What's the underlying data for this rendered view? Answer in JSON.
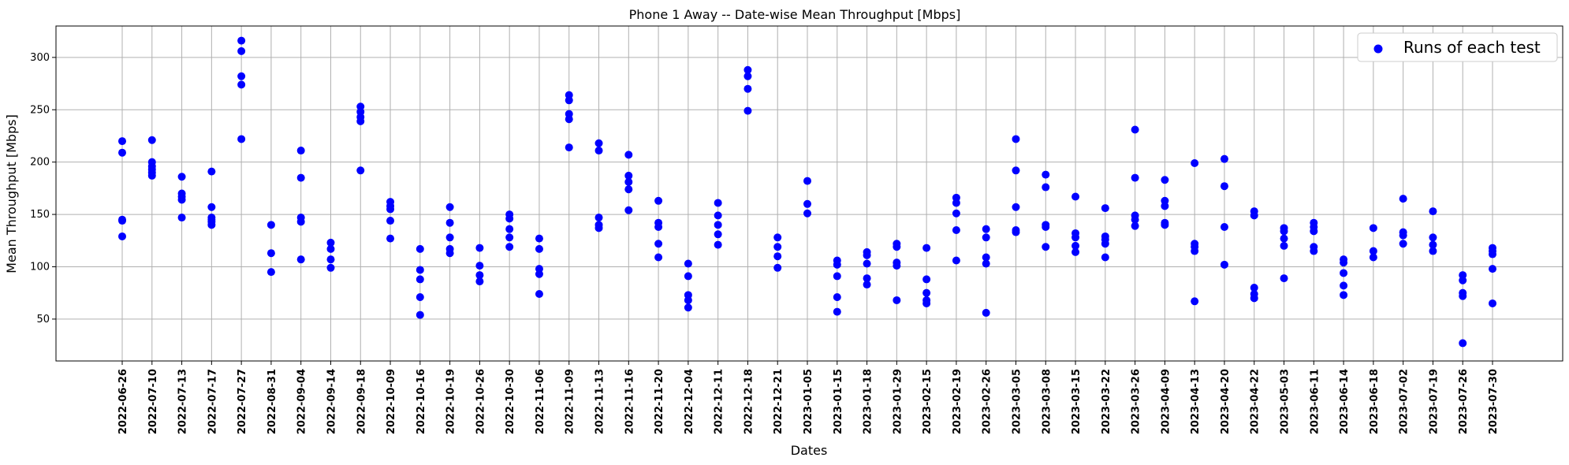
{
  "chart_data": {
    "type": "scatter",
    "title": "Phone 1 Away -- Date-wise Mean Throughput [Mbps]",
    "xlabel": "Dates",
    "ylabel": "Mean Throughput [Mbps]",
    "ylim": [
      10,
      330
    ],
    "yticks": [
      50,
      100,
      150,
      200,
      250,
      300
    ],
    "grid": true,
    "legend_position": "top-right",
    "marker_color": "#0000ff",
    "series": [
      {
        "name": "Runs of each test",
        "points": [
          {
            "x": "2022-06-26",
            "y": [
              220,
              209,
              145,
              144,
              129
            ]
          },
          {
            "x": "2022-07-10",
            "y": [
              221,
              200,
              196,
              193,
              190,
              187
            ]
          },
          {
            "x": "2022-07-13",
            "y": [
              186,
              170,
              167,
              164,
              147
            ]
          },
          {
            "x": "2022-07-17",
            "y": [
              191,
              157,
              147,
              145,
              143,
              140
            ]
          },
          {
            "x": "2022-07-27",
            "y": [
              316,
              306,
              282,
              274,
              222
            ]
          },
          {
            "x": "2022-08-31",
            "y": [
              140,
              113,
              95
            ]
          },
          {
            "x": "2022-09-04",
            "y": [
              211,
              185,
              147,
              143,
              107
            ]
          },
          {
            "x": "2022-09-14",
            "y": [
              123,
              117,
              107,
              99
            ]
          },
          {
            "x": "2022-09-18",
            "y": [
              253,
              248,
              243,
              239,
              192
            ]
          },
          {
            "x": "2022-10-09",
            "y": [
              162,
              158,
              155,
              144,
              127
            ]
          },
          {
            "x": "2022-10-16",
            "y": [
              117,
              97,
              88,
              71,
              54
            ]
          },
          {
            "x": "2022-10-19",
            "y": [
              157,
              142,
              128,
              117,
              113
            ]
          },
          {
            "x": "2022-10-26",
            "y": [
              118,
              101,
              92,
              86
            ]
          },
          {
            "x": "2022-10-30",
            "y": [
              150,
              146,
              136,
              128,
              119
            ]
          },
          {
            "x": "2022-11-06",
            "y": [
              127,
              117,
              98,
              93,
              74
            ]
          },
          {
            "x": "2022-11-09",
            "y": [
              264,
              259,
              246,
              241,
              214
            ]
          },
          {
            "x": "2022-11-13",
            "y": [
              218,
              211,
              147,
              140,
              137
            ]
          },
          {
            "x": "2022-11-16",
            "y": [
              207,
              187,
              181,
              174,
              154
            ]
          },
          {
            "x": "2022-11-20",
            "y": [
              163,
              142,
              138,
              122,
              109
            ]
          },
          {
            "x": "2022-12-04",
            "y": [
              103,
              91,
              73,
              68,
              61
            ]
          },
          {
            "x": "2022-12-11",
            "y": [
              161,
              149,
              140,
              131,
              121
            ]
          },
          {
            "x": "2022-12-18",
            "y": [
              288,
              282,
              270,
              249
            ]
          },
          {
            "x": "2022-12-21",
            "y": [
              128,
              119,
              110,
              99
            ]
          },
          {
            "x": "2023-01-05",
            "y": [
              182,
              160,
              151
            ]
          },
          {
            "x": "2023-01-15",
            "y": [
              106,
              102,
              91,
              71,
              57
            ]
          },
          {
            "x": "2023-01-18",
            "y": [
              114,
              111,
              103,
              89,
              83
            ]
          },
          {
            "x": "2023-01-29",
            "y": [
              122,
              119,
              104,
              101,
              68
            ]
          },
          {
            "x": "2023-02-15",
            "y": [
              118,
              88,
              75,
              68,
              65
            ]
          },
          {
            "x": "2023-02-19",
            "y": [
              166,
              161,
              151,
              135,
              106
            ]
          },
          {
            "x": "2023-02-26",
            "y": [
              136,
              128,
              109,
              103,
              56
            ]
          },
          {
            "x": "2023-03-05",
            "y": [
              222,
              192,
              157,
              135,
              133
            ]
          },
          {
            "x": "2023-03-08",
            "y": [
              188,
              176,
              140,
              138,
              119
            ]
          },
          {
            "x": "2023-03-15",
            "y": [
              167,
              132,
              128,
              120,
              114
            ]
          },
          {
            "x": "2023-03-22",
            "y": [
              156,
              129,
              126,
              122,
              109
            ]
          },
          {
            "x": "2023-03-26",
            "y": [
              231,
              185,
              149,
              145,
              139
            ]
          },
          {
            "x": "2023-04-09",
            "y": [
              183,
              163,
              158,
              142,
              140
            ]
          },
          {
            "x": "2023-04-13",
            "y": [
              199,
              122,
              119,
              115,
              67
            ]
          },
          {
            "x": "2023-04-20",
            "y": [
              203,
              177,
              138,
              102
            ]
          },
          {
            "x": "2023-04-22",
            "y": [
              153,
              149,
              80,
              74,
              70
            ]
          },
          {
            "x": "2023-05-03",
            "y": [
              137,
              134,
              127,
              120,
              89
            ]
          },
          {
            "x": "2023-06-11",
            "y": [
              142,
              138,
              134,
              119,
              115
            ]
          },
          {
            "x": "2023-06-14",
            "y": [
              107,
              104,
              94,
              82,
              73
            ]
          },
          {
            "x": "2023-06-18",
            "y": [
              137,
              115,
              109
            ]
          },
          {
            "x": "2023-07-02",
            "y": [
              165,
              133,
              130,
              122
            ]
          },
          {
            "x": "2023-07-19",
            "y": [
              153,
              128,
              121,
              115
            ]
          },
          {
            "x": "2023-07-26",
            "y": [
              92,
              87,
              75,
              72,
              27
            ]
          },
          {
            "x": "2023-07-30",
            "y": [
              118,
              115,
              112,
              98,
              65
            ]
          }
        ]
      }
    ]
  }
}
